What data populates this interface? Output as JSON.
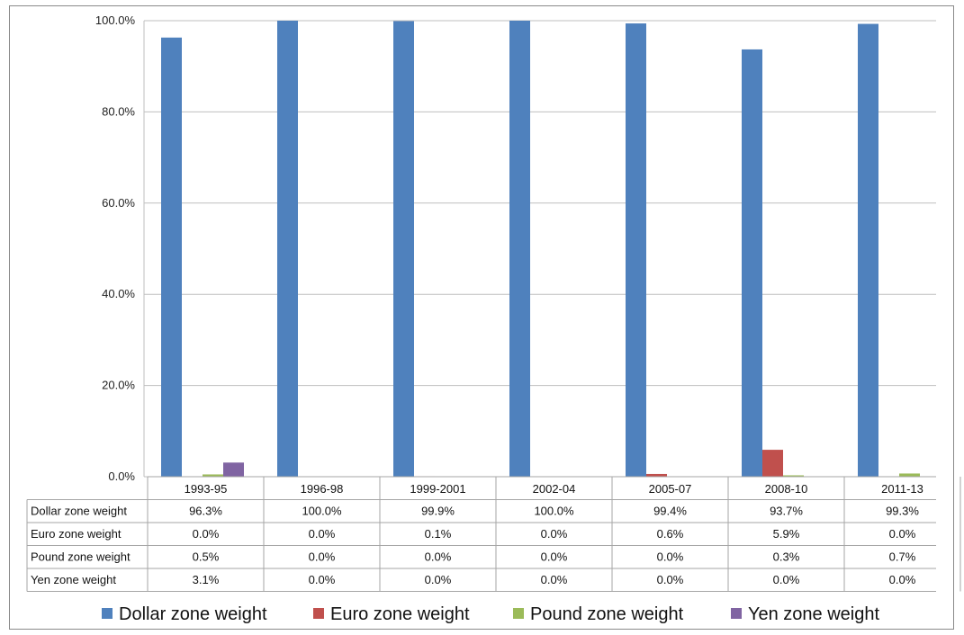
{
  "chart_data": {
    "type": "bar",
    "categories": [
      "1993-95",
      "1996-98",
      "1999-2001",
      "2002-04",
      "2005-07",
      "2008-10",
      "2011-13"
    ],
    "series": [
      {
        "name": "Dollar zone weight",
        "values": [
          96.3,
          100.0,
          99.9,
          100.0,
          99.4,
          93.7,
          99.3
        ],
        "labels": [
          "96.3%",
          "100.0%",
          "99.9%",
          "100.0%",
          "99.4%",
          "93.7%",
          "99.3%"
        ],
        "color": "#4f81bd"
      },
      {
        "name": "Euro zone weight",
        "values": [
          0.0,
          0.0,
          0.1,
          0.0,
          0.6,
          5.9,
          0.0
        ],
        "labels": [
          "0.0%",
          "0.0%",
          "0.1%",
          "0.0%",
          "0.6%",
          "5.9%",
          "0.0%"
        ],
        "color": "#c0504d"
      },
      {
        "name": "Pound zone weight",
        "values": [
          0.5,
          0.0,
          0.0,
          0.0,
          0.0,
          0.3,
          0.7
        ],
        "labels": [
          "0.5%",
          "0.0%",
          "0.0%",
          "0.0%",
          "0.0%",
          "0.3%",
          "0.7%"
        ],
        "color": "#9bbb59"
      },
      {
        "name": "Yen zone weight",
        "values": [
          3.1,
          0.0,
          0.0,
          0.0,
          0.0,
          0.0,
          0.0
        ],
        "labels": [
          "3.1%",
          "0.0%",
          "0.0%",
          "0.0%",
          "0.0%",
          "0.0%",
          "0.0%"
        ],
        "color": "#8064a2"
      }
    ],
    "yticks": [
      "0.0%",
      "20.0%",
      "40.0%",
      "60.0%",
      "80.0%",
      "100.0%"
    ],
    "ylim": [
      0,
      100
    ],
    "grid": true,
    "data_table": true,
    "legend_position": "bottom",
    "title": "",
    "xlabel": "",
    "ylabel": ""
  }
}
